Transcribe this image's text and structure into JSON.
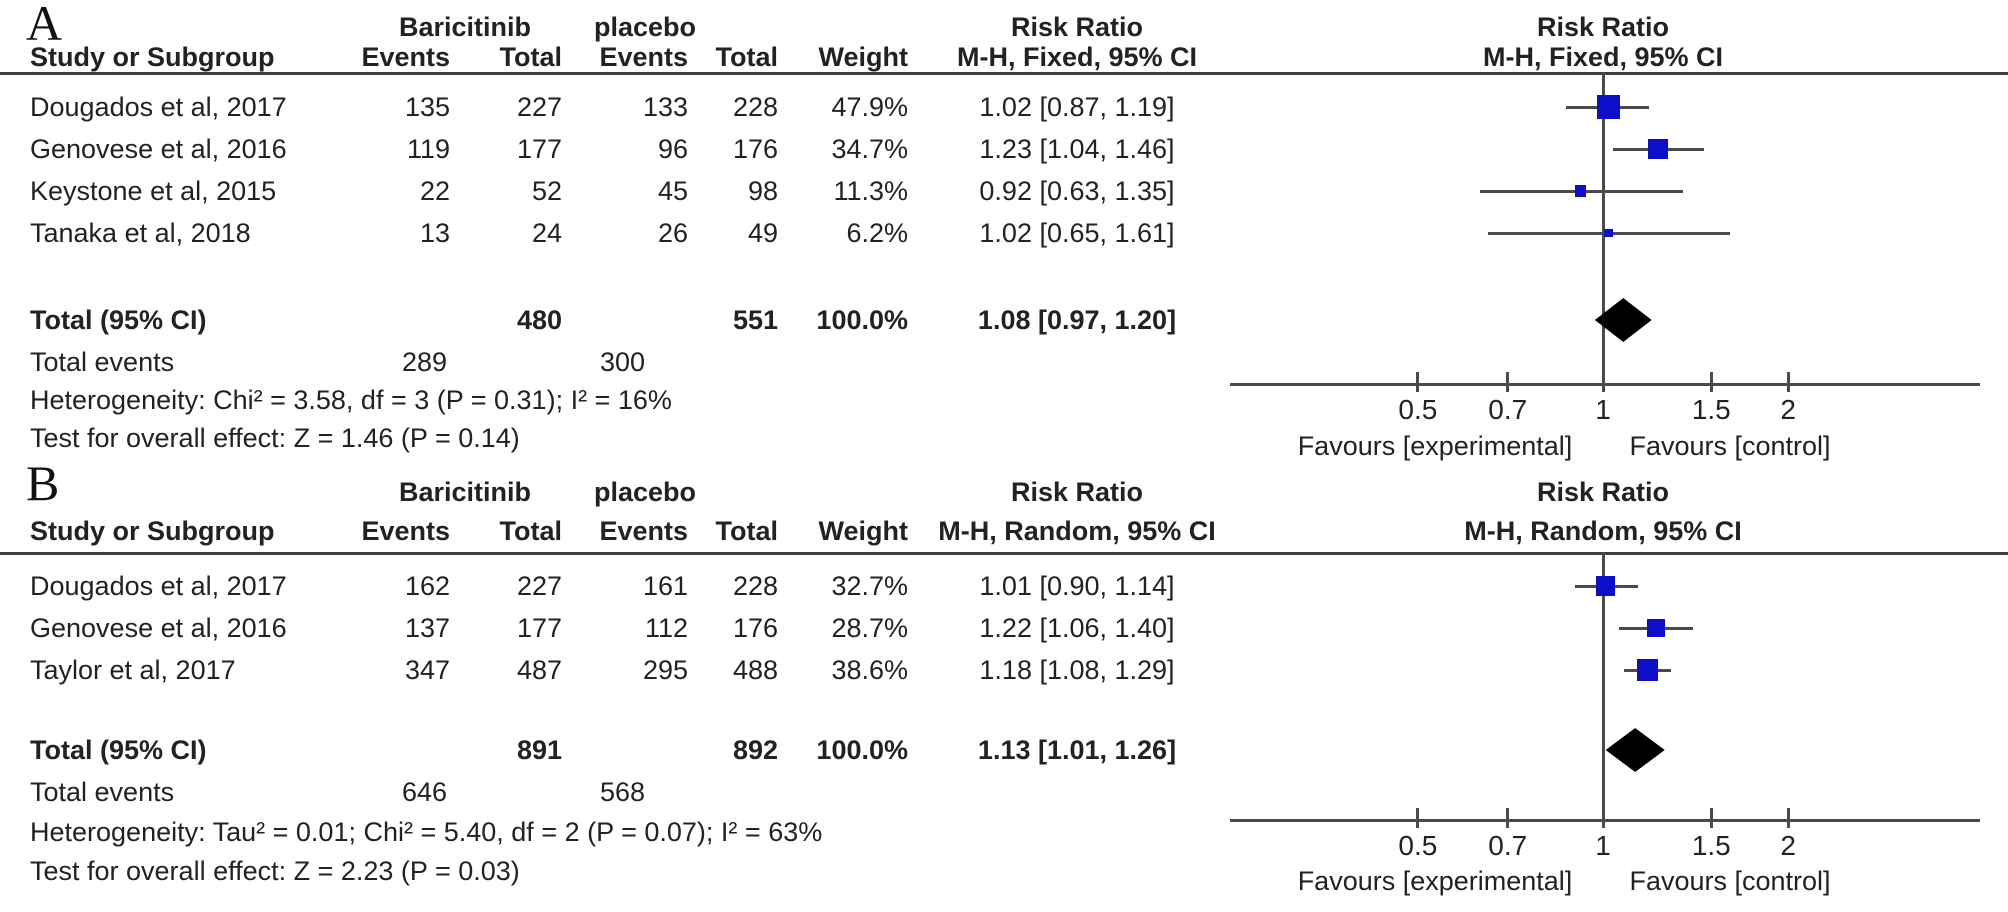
{
  "figure": {
    "background": "#ffffff"
  },
  "colors": {
    "square": "#0d0dca",
    "diamond": "#000000",
    "line": "#4a4a4a",
    "text": "#222222"
  },
  "chart_data": [
    {
      "type": "forest",
      "panel_label": "A",
      "group_labels": [
        "Baricitinib",
        "placebo"
      ],
      "effect_header": "Risk Ratio",
      "method_header": "M-H, Fixed, 95% CI",
      "columns": [
        "Study or Subgroup",
        "Events",
        "Total",
        "Events",
        "Total",
        "Weight"
      ],
      "studies": [
        {
          "name": "Dougados et al, 2017",
          "events_exp": 135,
          "total_exp": 227,
          "events_ctrl": 133,
          "total_ctrl": 228,
          "weight": "47.9%",
          "weight_pct": 47.9,
          "rr": 1.02,
          "ci_low": 0.87,
          "ci_high": 1.19,
          "ci_label": "1.02 [0.87, 1.19]"
        },
        {
          "name": "Genovese et al, 2016",
          "events_exp": 119,
          "total_exp": 177,
          "events_ctrl": 96,
          "total_ctrl": 176,
          "weight": "34.7%",
          "weight_pct": 34.7,
          "rr": 1.23,
          "ci_low": 1.04,
          "ci_high": 1.46,
          "ci_label": "1.23 [1.04, 1.46]"
        },
        {
          "name": "Keystone et al, 2015",
          "events_exp": 22,
          "total_exp": 52,
          "events_ctrl": 45,
          "total_ctrl": 98,
          "weight": "11.3%",
          "weight_pct": 11.3,
          "rr": 0.92,
          "ci_low": 0.63,
          "ci_high": 1.35,
          "ci_label": "0.92 [0.63, 1.35]"
        },
        {
          "name": "Tanaka et al, 2018",
          "events_exp": 13,
          "total_exp": 24,
          "events_ctrl": 26,
          "total_ctrl": 49,
          "weight": "6.2%",
          "weight_pct": 6.2,
          "rr": 1.02,
          "ci_low": 0.65,
          "ci_high": 1.61,
          "ci_label": "1.02 [0.65, 1.61]"
        }
      ],
      "total": {
        "label": "Total (95% CI)",
        "total_exp": 480,
        "total_ctrl": 551,
        "weight": "100.0%",
        "rr": 1.08,
        "ci_low": 0.97,
        "ci_high": 1.2,
        "ci_label": "1.08 [0.97, 1.20]"
      },
      "total_events": {
        "label": "Total events",
        "exp": 289,
        "ctrl": 300
      },
      "heterogeneity": "Heterogeneity: Chi² = 3.58, df = 3 (P = 0.31); I² = 16%",
      "overall_effect": "Test for overall effect: Z = 1.46 (P = 0.14)",
      "axis": {
        "scale": "log",
        "ticks": [
          0.5,
          0.7,
          1,
          1.5,
          2
        ],
        "tick_labels": [
          "0.5",
          "0.7",
          "1",
          "1.5",
          "2"
        ],
        "xlim": [
          0.24,
          4.1
        ]
      },
      "favours_left": "Favours [experimental]",
      "favours_right": "Favours [control]"
    },
    {
      "type": "forest",
      "panel_label": "B",
      "group_labels": [
        "Baricitinib",
        "placebo"
      ],
      "effect_header": "Risk Ratio",
      "method_header": "M-H, Random, 95% CI",
      "columns": [
        "Study or Subgroup",
        "Events",
        "Total",
        "Events",
        "Total",
        "Weight"
      ],
      "studies": [
        {
          "name": "Dougados et al, 2017",
          "events_exp": 162,
          "total_exp": 227,
          "events_ctrl": 161,
          "total_ctrl": 228,
          "weight": "32.7%",
          "weight_pct": 32.7,
          "rr": 1.01,
          "ci_low": 0.9,
          "ci_high": 1.14,
          "ci_label": "1.01 [0.90, 1.14]"
        },
        {
          "name": "Genovese et al, 2016",
          "events_exp": 137,
          "total_exp": 177,
          "events_ctrl": 112,
          "total_ctrl": 176,
          "weight": "28.7%",
          "weight_pct": 28.7,
          "rr": 1.22,
          "ci_low": 1.06,
          "ci_high": 1.4,
          "ci_label": "1.22 [1.06, 1.40]"
        },
        {
          "name": "Taylor et al, 2017",
          "events_exp": 347,
          "total_exp": 487,
          "events_ctrl": 295,
          "total_ctrl": 488,
          "weight": "38.6%",
          "weight_pct": 38.6,
          "rr": 1.18,
          "ci_low": 1.08,
          "ci_high": 1.29,
          "ci_label": "1.18 [1.08, 1.29]"
        }
      ],
      "total": {
        "label": "Total (95% CI)",
        "total_exp": 891,
        "total_ctrl": 892,
        "weight": "100.0%",
        "rr": 1.13,
        "ci_low": 1.01,
        "ci_high": 1.26,
        "ci_label": "1.13 [1.01, 1.26]"
      },
      "total_events": {
        "label": "Total events",
        "exp": 646,
        "ctrl": 568
      },
      "heterogeneity": "Heterogeneity: Tau² = 0.01; Chi² = 5.40, df = 2 (P = 0.07); I² = 63%",
      "overall_effect": "Test for overall effect: Z = 2.23 (P = 0.03)",
      "axis": {
        "scale": "log",
        "ticks": [
          0.5,
          0.7,
          1,
          1.5,
          2
        ],
        "tick_labels": [
          "0.5",
          "0.7",
          "1",
          "1.5",
          "2"
        ],
        "xlim": [
          0.24,
          4.1
        ]
      },
      "favours_left": "Favours [experimental]",
      "favours_right": "Favours [control]"
    }
  ]
}
